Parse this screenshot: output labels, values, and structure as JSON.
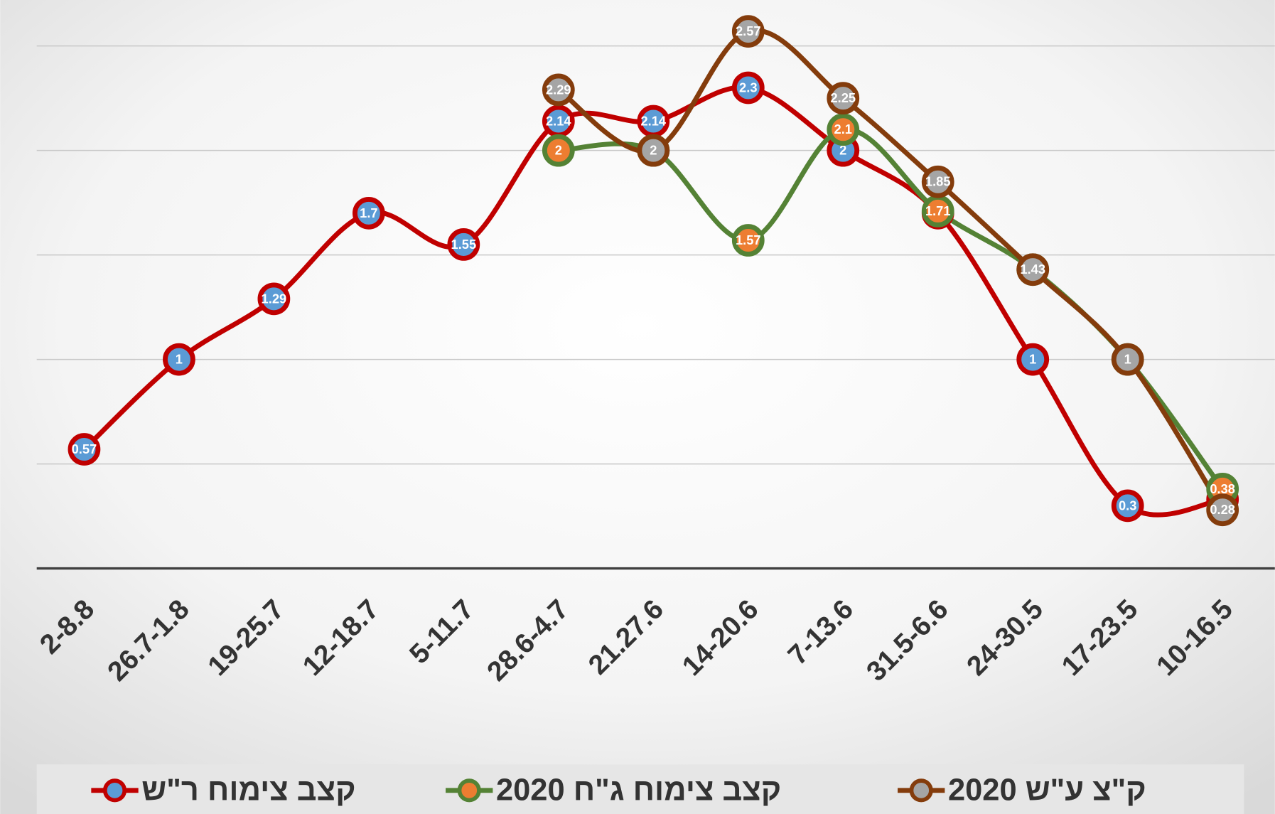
{
  "chart_data": {
    "type": "line",
    "categories": [
      "2-8.8",
      "26.7-1.8",
      "19-25.7",
      "12-18.7",
      "5-11.7",
      "28.6-4.7",
      "21.27.6",
      "14-20.6",
      "7-13.6",
      "31.5-6.6",
      "24-30.5",
      "17-23.5",
      "10-16.5"
    ],
    "series": [
      {
        "name": "קצב צימוח ר\"ש",
        "color": "#c00000",
        "marker_color": "#5b9bd5",
        "values": [
          0.57,
          1,
          1.29,
          1.7,
          1.55,
          2.14,
          2.14,
          2.3,
          2,
          1.7,
          1,
          0.3,
          0.33
        ]
      },
      {
        "name": "קצב צימוח ג\"ח 2020",
        "color": "#548235",
        "marker_color": "#ed7d31",
        "values": [
          null,
          null,
          null,
          null,
          null,
          2,
          2,
          1.57,
          2.1,
          1.71,
          1.43,
          1,
          0.38
        ]
      },
      {
        "name": "ק\"צ ע\"ש 2020",
        "color": "#843c0c",
        "marker_color": "#a5a5a5",
        "values": [
          null,
          null,
          null,
          null,
          null,
          2.29,
          2,
          2.57,
          2.25,
          1.85,
          1.43,
          1,
          0.28
        ]
      }
    ],
    "ylim": [
      0,
      2.72
    ],
    "yticks": [
      0,
      0.5,
      1,
      1.5,
      2,
      2.5
    ],
    "grid": true,
    "legend": "bottom"
  }
}
